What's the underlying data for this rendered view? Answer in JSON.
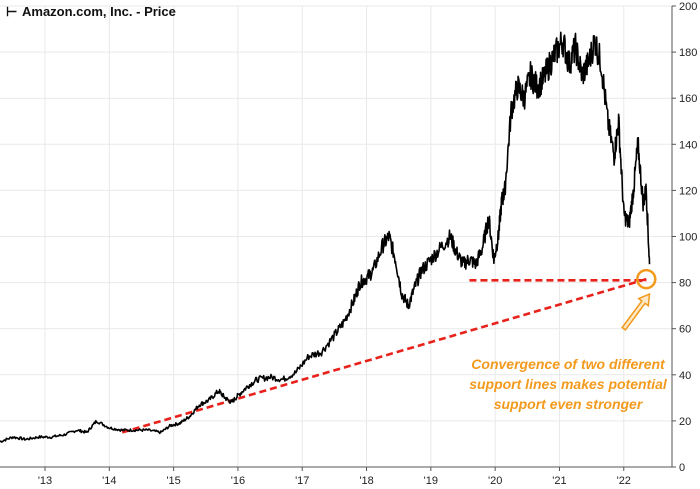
{
  "chart_data": {
    "type": "line",
    "title": "Amazon.com, Inc. - Price",
    "xlabel": "",
    "ylabel": "",
    "ylim": [
      0,
      200
    ],
    "xlim": [
      2012.5,
      2022.95
    ],
    "y_ticks": [
      0,
      20,
      40,
      60,
      80,
      100,
      120,
      140,
      160,
      180,
      200
    ],
    "x_ticks": [
      {
        "label": "'13",
        "value": 2013.2
      },
      {
        "label": "'14",
        "value": 2014.2
      },
      {
        "label": "'15",
        "value": 2015.2
      },
      {
        "label": "'16",
        "value": 2016.2
      },
      {
        "label": "'17",
        "value": 2017.2
      },
      {
        "label": "'18",
        "value": 2018.2
      },
      {
        "label": "'19",
        "value": 2019.2
      },
      {
        "label": "'20",
        "value": 2020.2
      },
      {
        "label": "'21",
        "value": 2021.2
      },
      {
        "label": "'22",
        "value": 2022.2
      }
    ],
    "grid": true,
    "series": [
      {
        "color": "#000000",
        "x": [
          2012.5,
          2012.7,
          2012.9,
          2013.1,
          2013.3,
          2013.5,
          2013.7,
          2013.85,
          2014.0,
          2014.2,
          2014.4,
          2014.6,
          2014.8,
          2015.0,
          2015.15,
          2015.3,
          2015.45,
          2015.6,
          2015.75,
          2015.9,
          2016.0,
          2016.1,
          2016.2,
          2016.35,
          2016.5,
          2016.7,
          2016.9,
          2017.1,
          2017.3,
          2017.5,
          2017.7,
          2017.85,
          2018.0,
          2018.1,
          2018.2,
          2018.3,
          2018.45,
          2018.55,
          2018.65,
          2018.75,
          2018.85,
          2018.95,
          2019.05,
          2019.2,
          2019.35,
          2019.5,
          2019.6,
          2019.7,
          2019.8,
          2019.9,
          2020.0,
          2020.1,
          2020.18,
          2020.25,
          2020.3,
          2020.35,
          2020.45,
          2020.55,
          2020.65,
          2020.75,
          2020.85,
          2020.95,
          2021.05,
          2021.15,
          2021.25,
          2021.35,
          2021.45,
          2021.55,
          2021.65,
          2021.75,
          2021.85,
          2021.95,
          2022.05,
          2022.12,
          2022.2,
          2022.28,
          2022.35,
          2022.42,
          2022.5,
          2022.55,
          2022.6
        ],
        "values": [
          11,
          13,
          12,
          13,
          13,
          14,
          16,
          15,
          20,
          17,
          16,
          16,
          16,
          15,
          18,
          19,
          22,
          27,
          29,
          33,
          30,
          28,
          31,
          35,
          38,
          39,
          38,
          41,
          48,
          50,
          57,
          63,
          72,
          80,
          82,
          85,
          96,
          100,
          90,
          75,
          70,
          78,
          85,
          90,
          95,
          100,
          93,
          88,
          90,
          88,
          95,
          108,
          90,
          100,
          115,
          120,
          155,
          165,
          160,
          170,
          165,
          168,
          175,
          180,
          185,
          175,
          182,
          170,
          175,
          185,
          175,
          150,
          135,
          150,
          110,
          105,
          120,
          140,
          115,
          120,
          88
        ]
      }
    ],
    "annotations": {
      "support_lines": [
        {
          "color": "#e8211b",
          "from": {
            "x": 2014.4,
            "y": 15
          },
          "to": {
            "x": 2022.55,
            "y": 81.5
          }
        },
        {
          "color": "#e8211b",
          "from": {
            "x": 2019.8,
            "y": 81
          },
          "to": {
            "x": 2022.55,
            "y": 81
          }
        }
      ],
      "circle": {
        "color": "#f39a1c",
        "x": 2022.55,
        "y": 81.5
      },
      "arrow": {
        "color": "#f39a1c",
        "from": {
          "x": 2022.2,
          "y": 60
        },
        "to": {
          "x": 2022.6,
          "y": 75
        }
      },
      "text_color": "#f39a1c",
      "text_lines": [
        "Convergence of two different",
        "support lines makes potential",
        "support even stronger"
      ]
    }
  }
}
